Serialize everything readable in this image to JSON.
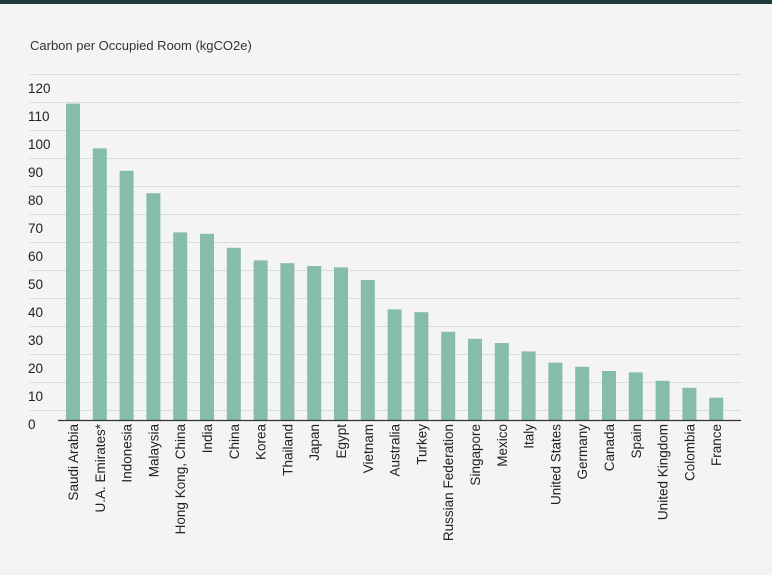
{
  "chart_data": {
    "type": "bar",
    "ylabel": "Carbon per Occupied Room (kgCO2e)",
    "xlabel": "",
    "ylim": [
      0,
      120
    ],
    "yticks": [
      0,
      10,
      20,
      30,
      40,
      50,
      60,
      70,
      80,
      90,
      100,
      110,
      120
    ],
    "grid": true,
    "categories": [
      "Saudi Arabia",
      "U.A. Emirates*",
      "Indonesia",
      "Malaysia",
      "Hong Kong, China",
      "India",
      "China",
      "Korea",
      "Thailand",
      "Japan",
      "Egypt",
      "Vietnam",
      "Australia",
      "Turkey",
      "Russian Federation",
      "Singapore",
      "Mexico",
      "Italy",
      "United States",
      "Germany",
      "Canada",
      "Spain",
      "United Kingdom",
      "Colombia",
      "France"
    ],
    "values": [
      113,
      97,
      89,
      81,
      67,
      66.5,
      61.5,
      57,
      56,
      55,
      54.5,
      50,
      39.5,
      38.5,
      31.5,
      29,
      27.5,
      24.5,
      20.5,
      19,
      17.5,
      17,
      14,
      11.5,
      8
    ],
    "colors": {
      "bar": "#86bcaa",
      "grid": "#dcdcdc",
      "axis": "#333333"
    }
  }
}
